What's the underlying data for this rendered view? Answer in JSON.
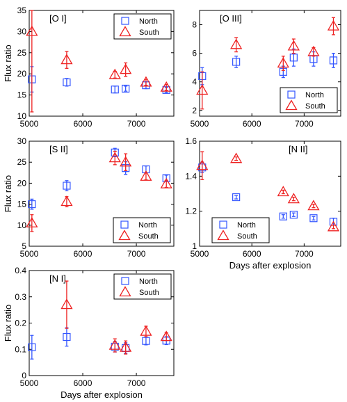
{
  "figure": {
    "x_axis_label": "Days after explosion",
    "y_axis_label": "Flux ratio"
  },
  "colors": {
    "North": "#3355ff",
    "South": "#ee2222",
    "axis": "#000000"
  },
  "chart_data": [
    {
      "type": "scatter",
      "title": "[O I]",
      "xlim": [
        5000,
        7700
      ],
      "ylim": [
        10,
        35
      ],
      "xticks": [
        5000,
        6000,
        7000
      ],
      "yticks": [
        10,
        15,
        20,
        25,
        30,
        35
      ],
      "ylabel": "Flux ratio",
      "xlabel": "",
      "legend": "top-right",
      "series": [
        {
          "name": "North",
          "marker": "square",
          "x": [
            5050,
            5700,
            6600,
            6800,
            7180,
            7560
          ],
          "y": [
            18.7,
            18.0,
            16.3,
            16.5,
            17.3,
            16.2
          ],
          "err": [
            3.0,
            0.9,
            0.8,
            0.6,
            0.8,
            0.6
          ]
        },
        {
          "name": "South",
          "marker": "triangle",
          "x": [
            5050,
            5700,
            6600,
            6800,
            7180,
            7560
          ],
          "y": [
            30.0,
            23.3,
            19.8,
            21.0,
            18.0,
            16.8
          ],
          "err": [
            19.0,
            2.0,
            0.8,
            1.6,
            0.7,
            0.7
          ]
        }
      ]
    },
    {
      "type": "scatter",
      "title": "[O III]",
      "xlim": [
        5000,
        7700
      ],
      "ylim": [
        1.6,
        9
      ],
      "xticks": [
        5000,
        6000,
        7000
      ],
      "yticks": [
        2,
        4,
        6,
        8
      ],
      "ylabel": "",
      "xlabel": "",
      "legend": "bottom-right",
      "series": [
        {
          "name": "North",
          "marker": "square",
          "x": [
            5050,
            5700,
            6600,
            6800,
            7180,
            7560
          ],
          "y": [
            4.4,
            5.4,
            4.7,
            5.7,
            5.6,
            5.5
          ],
          "err": [
            0.6,
            0.4,
            0.4,
            0.6,
            0.5,
            0.5
          ]
        },
        {
          "name": "South",
          "marker": "triangle",
          "x": [
            5050,
            5700,
            6600,
            6800,
            7180,
            7560
          ],
          "y": [
            3.4,
            6.6,
            5.3,
            6.5,
            6.1,
            7.9
          ],
          "err": [
            1.3,
            0.5,
            0.5,
            0.5,
            0.3,
            0.6
          ]
        }
      ]
    },
    {
      "type": "scatter",
      "title": "[S II]",
      "xlim": [
        5000,
        7700
      ],
      "ylim": [
        5,
        30
      ],
      "xticks": [
        5000,
        6000,
        7000
      ],
      "yticks": [
        5,
        10,
        15,
        20,
        25,
        30
      ],
      "ylabel": "Flux ratio",
      "xlabel": "",
      "legend": "bottom-right",
      "series": [
        {
          "name": "North",
          "marker": "square",
          "x": [
            5050,
            5700,
            6600,
            6800,
            7180,
            7560
          ],
          "y": [
            15.0,
            19.4,
            27.3,
            23.6,
            23.3,
            21.2
          ],
          "err": [
            1.2,
            1.2,
            1.0,
            1.5,
            0.8,
            0.7
          ]
        },
        {
          "name": "South",
          "marker": "triangle",
          "x": [
            5050,
            5700,
            6600,
            6800,
            7180,
            7560
          ],
          "y": [
            10.5,
            15.6,
            26.0,
            25.0,
            21.6,
            19.8
          ],
          "err": [
            2.0,
            1.2,
            1.6,
            2.0,
            0.8,
            0.8
          ]
        }
      ]
    },
    {
      "type": "scatter",
      "title": "[N II]",
      "xlim": [
        5000,
        7700
      ],
      "ylim": [
        1,
        1.6
      ],
      "xticks": [
        5000,
        6000,
        7000
      ],
      "yticks": [
        1,
        1.2,
        1.4,
        1.6
      ],
      "ylabel": "",
      "xlabel": "Days after explosion",
      "legend": "bottom-left",
      "series": [
        {
          "name": "North",
          "marker": "square",
          "x": [
            5050,
            5700,
            6600,
            6800,
            7180,
            7560
          ],
          "y": [
            1.45,
            1.28,
            1.17,
            1.18,
            1.16,
            1.14
          ],
          "err": [
            0.03,
            0.01,
            0.01,
            0.01,
            0.01,
            0.02
          ]
        },
        {
          "name": "South",
          "marker": "triangle",
          "x": [
            5050,
            5700,
            6600,
            6800,
            7180,
            7560
          ],
          "y": [
            1.46,
            1.5,
            1.31,
            1.27,
            1.23,
            1.11
          ],
          "err": [
            0.08,
            0.01,
            0.01,
            0.01,
            0.01,
            0.01
          ]
        }
      ]
    },
    {
      "type": "scatter",
      "title": "[N I]",
      "xlim": [
        5000,
        7700
      ],
      "ylim": [
        0,
        0.4
      ],
      "xticks": [
        5000,
        6000,
        7000
      ],
      "yticks": [
        0,
        0.1,
        0.2,
        0.3,
        0.4
      ],
      "ylabel": "Flux ratio",
      "xlabel": "Days after explosion",
      "legend": "top-right",
      "series": [
        {
          "name": "North",
          "marker": "square",
          "x": [
            5050,
            5700,
            6600,
            6800,
            7180,
            7560
          ],
          "y": [
            0.108,
            0.147,
            0.11,
            0.105,
            0.132,
            0.133
          ],
          "err": [
            0.045,
            0.035,
            0.02,
            0.02,
            0.015,
            0.015
          ]
        },
        {
          "name": "South",
          "marker": "triangle",
          "x": [
            5050,
            5700,
            6600,
            6800,
            7180,
            7560
          ],
          "y": [
            null,
            0.27,
            0.115,
            0.107,
            0.168,
            0.148
          ],
          "err": [
            null,
            0.09,
            0.025,
            0.025,
            0.02,
            0.015
          ]
        }
      ]
    }
  ]
}
